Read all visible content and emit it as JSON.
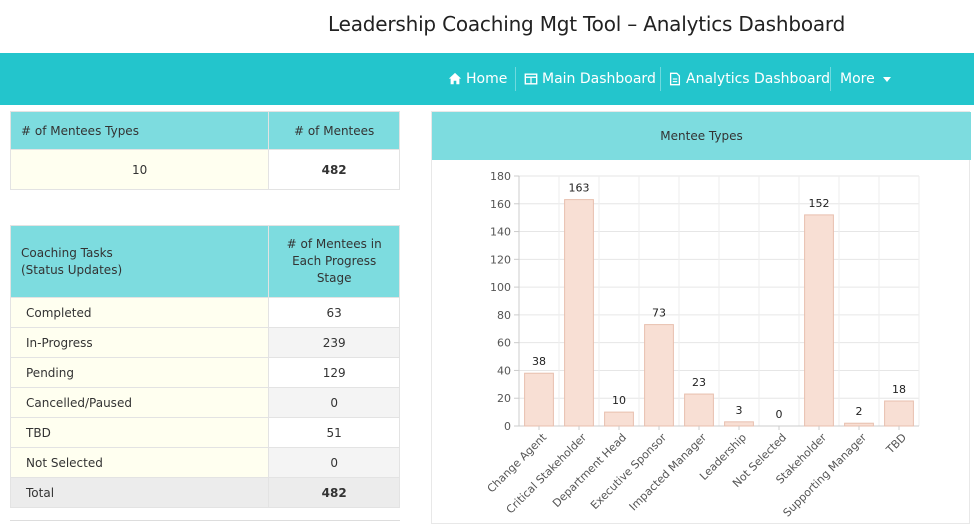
{
  "header": {
    "title": "Leadership Coaching Mgt Tool – Analytics Dashboard"
  },
  "nav": {
    "items": [
      {
        "label": "Home",
        "icon": "home-icon"
      },
      {
        "label": "Main Dashboard",
        "icon": "table-icon"
      },
      {
        "label": "Analytics Dashboard",
        "icon": "file-icon"
      },
      {
        "label": "More",
        "icon": "caret-down-icon"
      }
    ]
  },
  "summary_table": {
    "headers": [
      "# of Mentees Types",
      "# of Mentees"
    ],
    "row": [
      "10",
      "482"
    ]
  },
  "tasks_table": {
    "header_col1_line1": "Coaching Tasks",
    "header_col1_line2": "(Status Updates)",
    "header_col2": "# of Mentees in Each Progress Stage",
    "rows": [
      {
        "label": "Completed",
        "value": "63"
      },
      {
        "label": "In-Progress",
        "value": "239"
      },
      {
        "label": "Pending",
        "value": "129"
      },
      {
        "label": "Cancelled/Paused",
        "value": "0"
      },
      {
        "label": "TBD",
        "value": "51"
      },
      {
        "label": "Not Selected",
        "value": "0"
      }
    ],
    "total_label": "Total",
    "total_value": "482"
  },
  "chart_panel": {
    "title": "Mentee Types"
  },
  "chart_data": {
    "type": "bar",
    "title": "Mentee Types",
    "categories": [
      "Change Agent",
      "Critical Stakeholder",
      "Department Head",
      "Executive Sponsor",
      "Impacted Manager",
      "Leadership",
      "Not Selected",
      "Stakeholder",
      "Supporting Manager",
      "TBD"
    ],
    "values": [
      38,
      163,
      10,
      73,
      23,
      3,
      0,
      152,
      2,
      18
    ],
    "ylim": [
      0,
      180
    ],
    "yticks": [
      0,
      20,
      40,
      60,
      80,
      100,
      120,
      140,
      160,
      180
    ],
    "grid": true,
    "legend": "none",
    "bar_color": "#f8dfd4",
    "bar_border": "#e8bfae"
  }
}
